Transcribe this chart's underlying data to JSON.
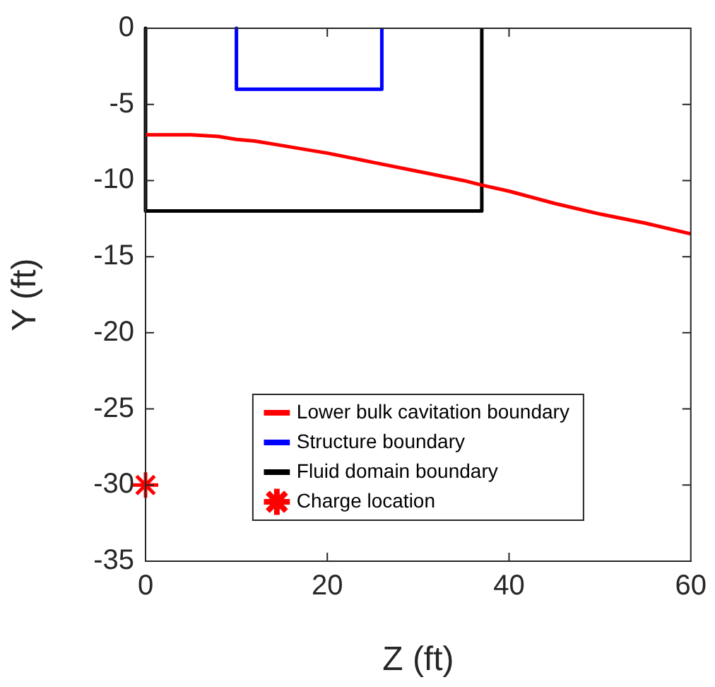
{
  "chart_data": {
    "type": "line",
    "xlabel": "Z (ft)",
    "ylabel": "Y (ft)",
    "xlim": [
      0,
      60
    ],
    "xticks": [
      0,
      20,
      40,
      60
    ],
    "ylim": [
      -35,
      0
    ],
    "yticks": [
      -35,
      -30,
      -25,
      -20,
      -15,
      -10,
      -5,
      0
    ],
    "grid": false,
    "legend": "bottom",
    "series": [
      {
        "name": "Lower bulk cavitation boundary",
        "color": "#ff0000",
        "x": [
          0,
          2,
          5,
          8,
          10,
          12,
          15,
          18,
          20,
          25,
          30,
          35,
          37,
          40,
          45,
          50,
          55,
          60
        ],
        "values": [
          -7,
          -7,
          -7,
          -7.1,
          -7.3,
          -7.4,
          -7.7,
          -8,
          -8.2,
          -8.8,
          -9.4,
          -10,
          -10.3,
          -10.7,
          -11.5,
          -12.2,
          -12.8,
          -13.5
        ]
      },
      {
        "name": "Structure boundary",
        "color": "#0000ff",
        "x": [
          10,
          10,
          26,
          26
        ],
        "values": [
          0,
          -4,
          -4,
          0
        ]
      },
      {
        "name": "Fluid domain boundary",
        "color": "#000000",
        "x": [
          0,
          0,
          37,
          37
        ],
        "values": [
          0,
          -12,
          -12,
          0
        ]
      },
      {
        "name": "Charge location",
        "type": "scatter",
        "marker": "cross",
        "color": "#ff0000",
        "x": [
          0
        ],
        "values": [
          -30
        ]
      }
    ]
  }
}
